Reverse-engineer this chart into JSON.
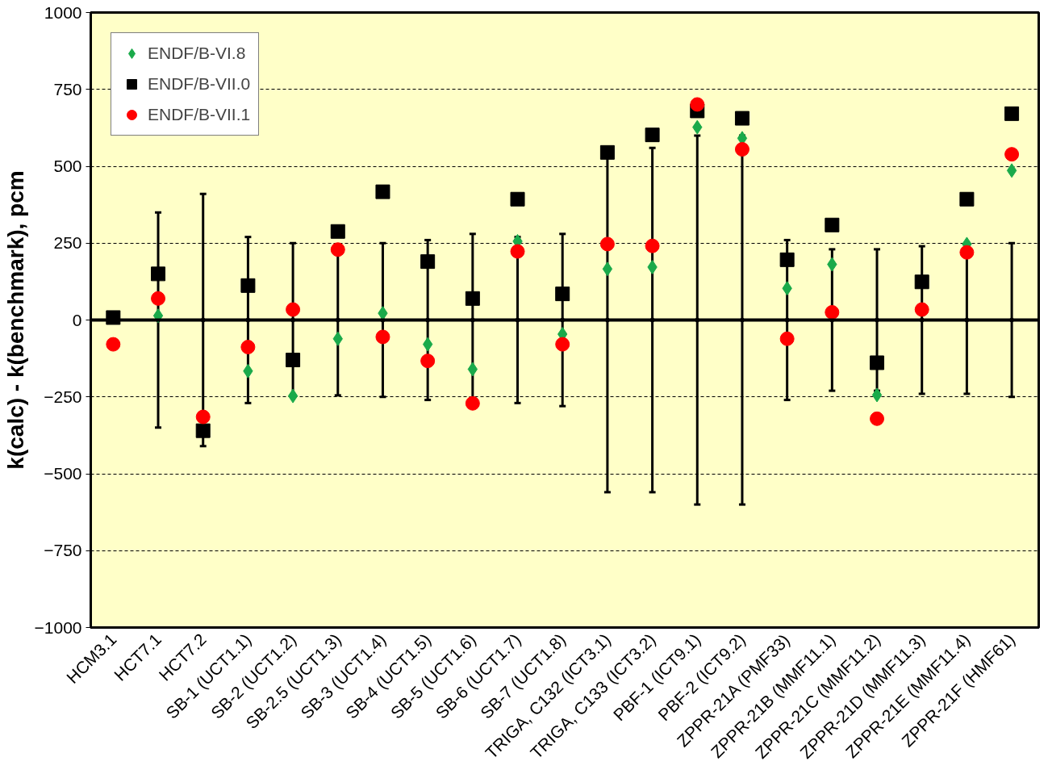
{
  "chart_data": {
    "type": "scatter",
    "ylabel": "k(calc) - k(benchmark), pcm",
    "categories": [
      "HCM3.1",
      "HCT7.1",
      "HCT7.2",
      "SB-1 (UCT1.1)",
      "SB-2 (UCT1.2)",
      "SB-2.5 (UCT1.3)",
      "SB-3 (UCT1.4)",
      "SB-4 (UCT1.5)",
      "SB-5 (UCT1.6)",
      "SB-6 (UCT1.7)",
      "SB-7 (UCT1.8)",
      "TRIGA, C132 (ICT3.1)",
      "TRIGA, C133 (ICT3.2)",
      "PBF-1 (ICT9.1)",
      "PBF-2 (ICT9.2)",
      "ZPPR-21A (PMF33)",
      "ZPPR-21B (MMF11.1)",
      "ZPPR-21C (MMF11.2)",
      "ZPPR-21D (MMF11.3)",
      "ZPPR-21E (MMF11.4)",
      "ZPPR-21F (HMF61)"
    ],
    "series": [
      {
        "color": "#000000",
        "marker": "circle",
        "values": [
          null,
          0,
          0,
          0,
          0,
          0,
          0,
          0,
          0,
          0,
          0,
          0,
          0,
          0,
          0,
          0,
          0,
          0,
          0,
          0,
          0
        ],
        "errors": [
          null,
          350,
          410,
          270,
          250,
          245,
          250,
          260,
          280,
          270,
          280,
          560,
          560,
          600,
          600,
          260,
          230,
          230,
          240,
          240,
          250
        ]
      },
      {
        "name": "ENDF/B-VI.8",
        "color": "#1aaa4a",
        "marker": "diamond",
        "values": [
          null,
          14,
          null,
          -166,
          -247,
          -61,
          22,
          -79,
          -160,
          256,
          -46,
          166,
          172,
          627,
          591,
          103,
          181,
          -244,
          null,
          247,
          486
        ]
      },
      {
        "name": "ENDF/B-VII.0",
        "color": "#000000",
        "marker": "square",
        "values": [
          8,
          150,
          -360,
          112,
          -130,
          288,
          417,
          190,
          70,
          393,
          85,
          545,
          602,
          680,
          656,
          196,
          309,
          -139,
          124,
          393,
          671
        ]
      },
      {
        "name": "ENDF/B-VII.1",
        "color": "#ff0000",
        "marker": "circle",
        "values": [
          -79,
          70,
          -315,
          -88,
          34,
          229,
          -55,
          -133,
          -271,
          223,
          -79,
          247,
          241,
          701,
          555,
          -61,
          25,
          -321,
          34,
          220,
          539
        ]
      }
    ],
    "ylim": [
      -1000,
      1000
    ],
    "yticks": [
      -1000,
      -750,
      -500,
      -250,
      0,
      250,
      500,
      750,
      1000
    ],
    "grid": "y",
    "legend": "top left",
    "ref_lines": [
      {
        "axis": "y",
        "value": 0,
        "label": null,
        "color": "#000000",
        "line_style": "solid"
      }
    ]
  }
}
